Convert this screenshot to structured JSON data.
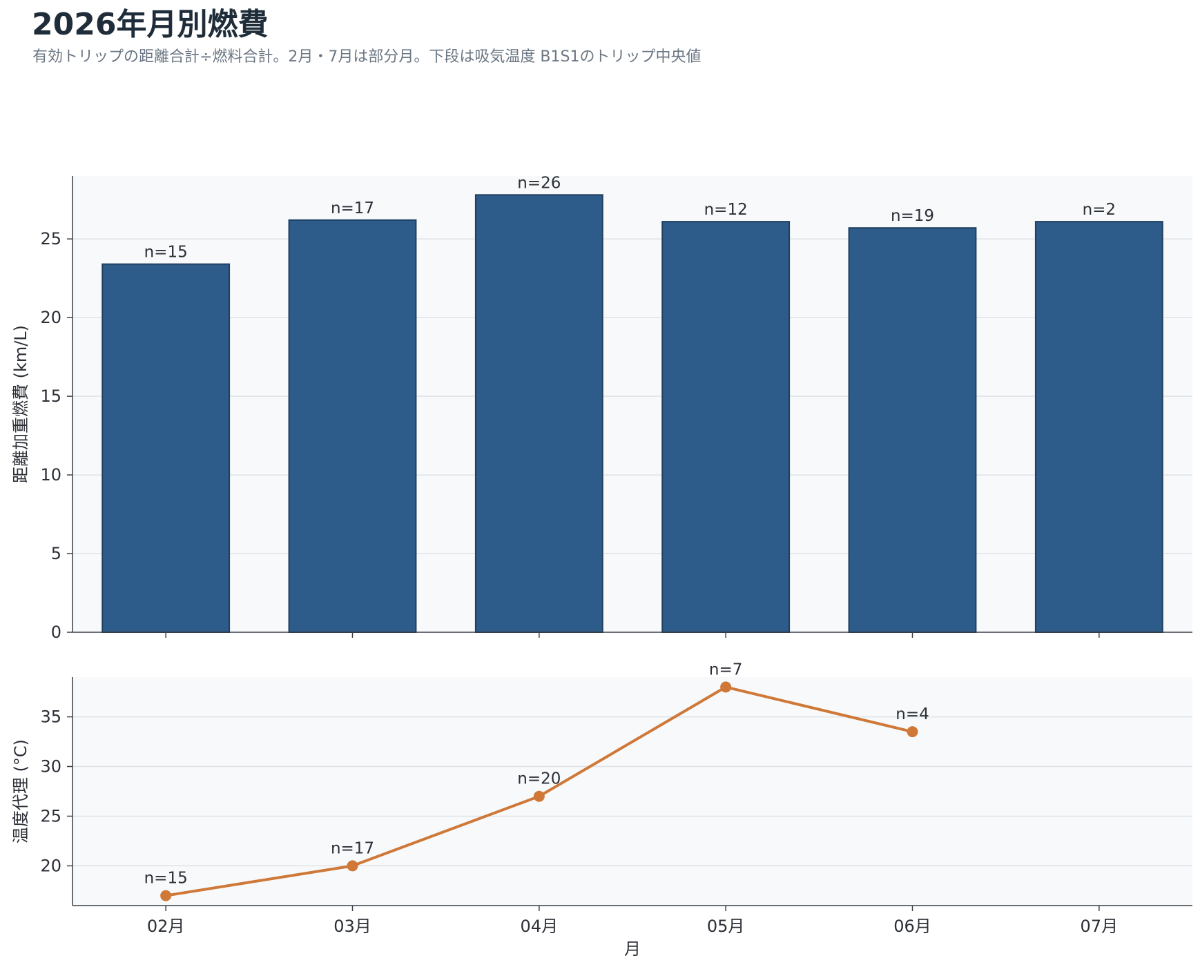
{
  "header": {
    "title": "2026年月別燃費",
    "subtitle": "有効トリップの距離合計÷燃料合計。2月・7月は部分月。下段は吸気温度 B1S1のトリップ中央値"
  },
  "chart_data": [
    {
      "type": "bar",
      "categories": [
        "02月",
        "03月",
        "04月",
        "05月",
        "06月",
        "07月"
      ],
      "values": [
        23.4,
        26.2,
        27.8,
        26.1,
        25.7,
        26.1
      ],
      "data_labels": [
        "n=15",
        "n=17",
        "n=26",
        "n=12",
        "n=19",
        "n=2"
      ],
      "ylabel": "距離加重燃費 (km/L)",
      "ylim": [
        0,
        29
      ],
      "yticks": [
        0,
        5,
        10,
        15,
        20,
        25
      ],
      "grid": "horizontal",
      "colors": {
        "bar_fill": "#2e5c8a",
        "bar_edge": "#1f3f5e",
        "plot_bg": "#f7f9fb",
        "grid": "#dfe3e8"
      }
    },
    {
      "type": "line",
      "categories": [
        "02月",
        "03月",
        "04月",
        "05月",
        "06月",
        "07月"
      ],
      "values": [
        17,
        20,
        27,
        38,
        33.5,
        null
      ],
      "data_labels": [
        "n=15",
        "n=17",
        "n=20",
        "n=7",
        "n=4",
        null
      ],
      "xlabel": "月",
      "ylabel": "温度代理 (°C)",
      "ylim": [
        16,
        39
      ],
      "yticks": [
        20,
        25,
        30,
        35
      ],
      "grid": "horizontal",
      "colors": {
        "line": "#cf7838",
        "plot_bg": "#f7f9fb",
        "grid": "#dfe3e8"
      }
    }
  ]
}
